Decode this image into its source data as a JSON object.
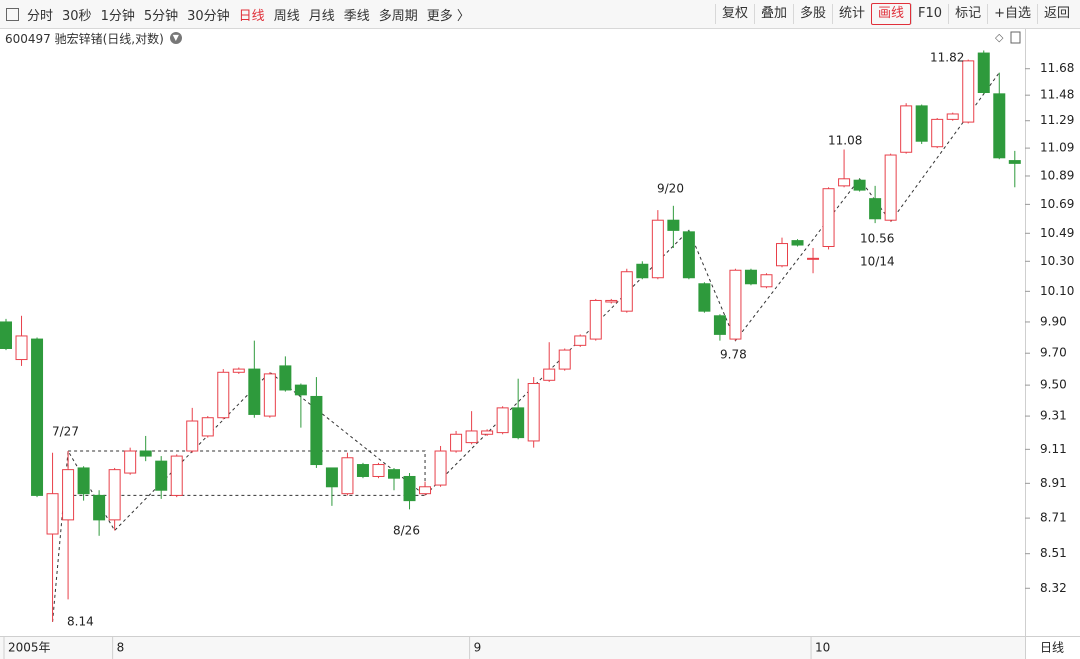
{
  "toolbar": {
    "tabs": [
      "分时",
      "30秒",
      "1分钟",
      "5分钟",
      "30分钟",
      "日线",
      "周线",
      "月线",
      "季线",
      "多周期",
      "更多 〉"
    ],
    "active_tab": "日线",
    "buttons": [
      "复权",
      "叠加",
      "多股",
      "统计",
      "画线",
      "F10",
      "标记",
      "+自选",
      "返回"
    ],
    "active_button": "画线"
  },
  "header": {
    "title": "600497 驰宏锌锗(日线,对数)"
  },
  "footer": {
    "period": "日线"
  },
  "chart_data": {
    "type": "candlestick",
    "categories": [
      "2005年",
      null,
      null,
      null,
      null,
      null,
      null,
      "8",
      null,
      null,
      null,
      null,
      null,
      null,
      null,
      null,
      null,
      null,
      null,
      null,
      null,
      null,
      null,
      null,
      null,
      null,
      null,
      null,
      null,
      null,
      "9",
      null,
      null,
      null,
      null,
      null,
      null,
      null,
      null,
      null,
      null,
      null,
      null,
      null,
      null,
      null,
      null,
      null,
      null,
      null,
      null,
      null,
      "10",
      null,
      null,
      null,
      null,
      null,
      null,
      null,
      null,
      null,
      null,
      null,
      null,
      null
    ],
    "open": [
      9.9,
      9.66,
      9.79,
      8.62,
      8.7,
      9.0,
      8.84,
      8.7,
      8.97,
      9.1,
      9.04,
      8.84,
      9.1,
      9.19,
      9.3,
      9.58,
      9.6,
      9.31,
      9.62,
      9.5,
      9.43,
      9.0,
      8.85,
      9.02,
      8.95,
      8.99,
      8.95,
      8.85,
      8.9,
      9.1,
      9.15,
      9.2,
      9.21,
      9.36,
      9.16,
      9.53,
      9.6,
      9.75,
      9.79,
      10.03,
      9.97,
      10.28,
      10.19,
      10.58,
      10.5,
      10.15,
      9.94,
      9.79,
      10.24,
      10.13,
      10.27,
      10.44,
      10.32,
      10.4,
      10.82,
      10.86,
      10.73,
      10.58,
      11.06,
      11.4,
      11.1,
      11.3,
      11.28,
      11.8,
      11.49,
      11.0
    ],
    "high": [
      9.92,
      9.94,
      9.8,
      9.09,
      9.1,
      9.01,
      8.87,
      9.0,
      9.12,
      9.19,
      9.07,
      9.08,
      9.36,
      9.31,
      9.6,
      9.61,
      9.78,
      9.58,
      9.68,
      9.51,
      9.55,
      9.0,
      9.09,
      9.03,
      9.03,
      9.0,
      8.97,
      8.92,
      9.13,
      9.22,
      9.34,
      9.23,
      9.37,
      9.54,
      9.55,
      9.77,
      9.73,
      9.82,
      10.05,
      10.05,
      10.25,
      10.3,
      10.65,
      10.68,
      10.51,
      10.16,
      9.95,
      10.25,
      10.25,
      10.22,
      10.46,
      10.45,
      10.39,
      10.81,
      11.08,
      10.87,
      10.82,
      11.05,
      11.42,
      11.41,
      11.31,
      11.35,
      11.75,
      11.82,
      11.65,
      11.07
    ],
    "low": [
      9.72,
      9.62,
      8.83,
      8.14,
      8.26,
      8.81,
      8.61,
      8.64,
      8.96,
      9.04,
      8.82,
      8.83,
      9.09,
      9.18,
      9.29,
      9.57,
      9.3,
      9.3,
      9.46,
      9.24,
      9.0,
      8.78,
      8.84,
      8.94,
      8.94,
      8.87,
      8.76,
      8.84,
      8.89,
      9.09,
      9.14,
      9.19,
      9.2,
      9.17,
      9.12,
      9.52,
      9.59,
      9.74,
      9.78,
      10.02,
      9.96,
      10.18,
      10.18,
      10.39,
      10.18,
      9.96,
      9.78,
      9.78,
      10.14,
      10.12,
      10.26,
      10.4,
      10.22,
      10.38,
      10.81,
      10.78,
      10.56,
      10.57,
      11.05,
      11.12,
      11.09,
      11.29,
      11.27,
      11.49,
      11.01,
      10.81
    ],
    "close": [
      9.73,
      9.81,
      8.84,
      8.85,
      8.99,
      8.85,
      8.7,
      8.99,
      9.1,
      9.07,
      8.87,
      9.07,
      9.28,
      9.3,
      9.58,
      9.6,
      9.32,
      9.57,
      9.47,
      9.44,
      9.02,
      8.89,
      9.06,
      8.95,
      9.02,
      8.94,
      8.81,
      8.89,
      9.1,
      9.2,
      9.22,
      9.22,
      9.36,
      9.18,
      9.51,
      9.6,
      9.72,
      9.81,
      10.04,
      10.04,
      10.23,
      10.19,
      10.58,
      10.51,
      10.19,
      9.97,
      9.82,
      10.24,
      10.15,
      10.21,
      10.42,
      10.41,
      10.32,
      10.8,
      10.87,
      10.79,
      10.59,
      11.04,
      11.4,
      11.14,
      11.3,
      11.34,
      11.74,
      11.5,
      11.02,
      10.98
    ],
    "up_color": "#e8404a",
    "down_color": "#2e9a3c",
    "log_scale": true,
    "grid": false,
    "ylim": [
      8.07,
      11.87
    ],
    "yticks": [
      8.32,
      8.51,
      8.71,
      8.91,
      9.11,
      9.31,
      {
        "value": 9.5,
        "label": "9.50"
      },
      {
        "value": 9.7,
        "label": "9.70"
      },
      {
        "value": 9.9,
        "label": "9.90"
      },
      {
        "value": 10.1,
        "label": "10.10"
      },
      {
        "value": 10.3,
        "label": "10.30"
      },
      10.49,
      10.69,
      10.89,
      11.09,
      11.29,
      11.48,
      11.68
    ],
    "annotations": [
      "7/27",
      "8.14",
      "8/26",
      "9/20",
      "9.78",
      "11.08",
      "10.56",
      "10/14",
      "11.82"
    ]
  }
}
